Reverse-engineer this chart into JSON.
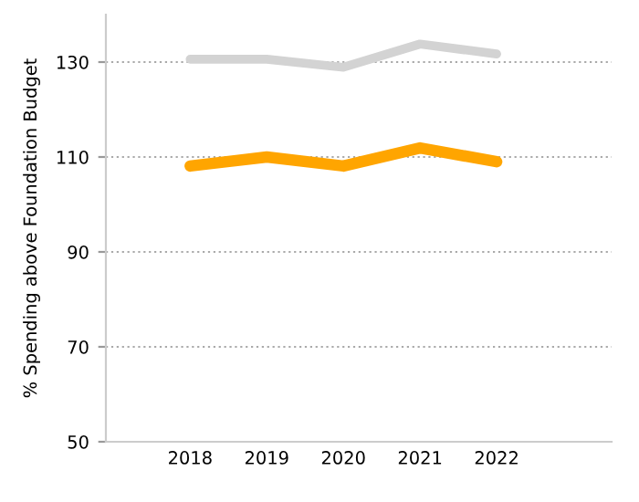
{
  "chart_data": {
    "type": "line",
    "ylabel": "% Spending above Foundation Budget",
    "categories": [
      "2018",
      "2019",
      "2020",
      "2021",
      "2022"
    ],
    "series": [
      {
        "color": "#d3d3d3",
        "values": [
          130.6,
          130.6,
          128.9,
          133.8,
          131.7
        ]
      },
      {
        "color": "#ffa500",
        "values": [
          108.1,
          110.0,
          108.1,
          111.9,
          109.0
        ]
      }
    ],
    "ylim": [
      50,
      140
    ],
    "yticks": [
      50,
      70,
      90,
      110,
      130
    ],
    "grid": "y",
    "marker": "none",
    "line_style": "solid",
    "legend": false
  }
}
